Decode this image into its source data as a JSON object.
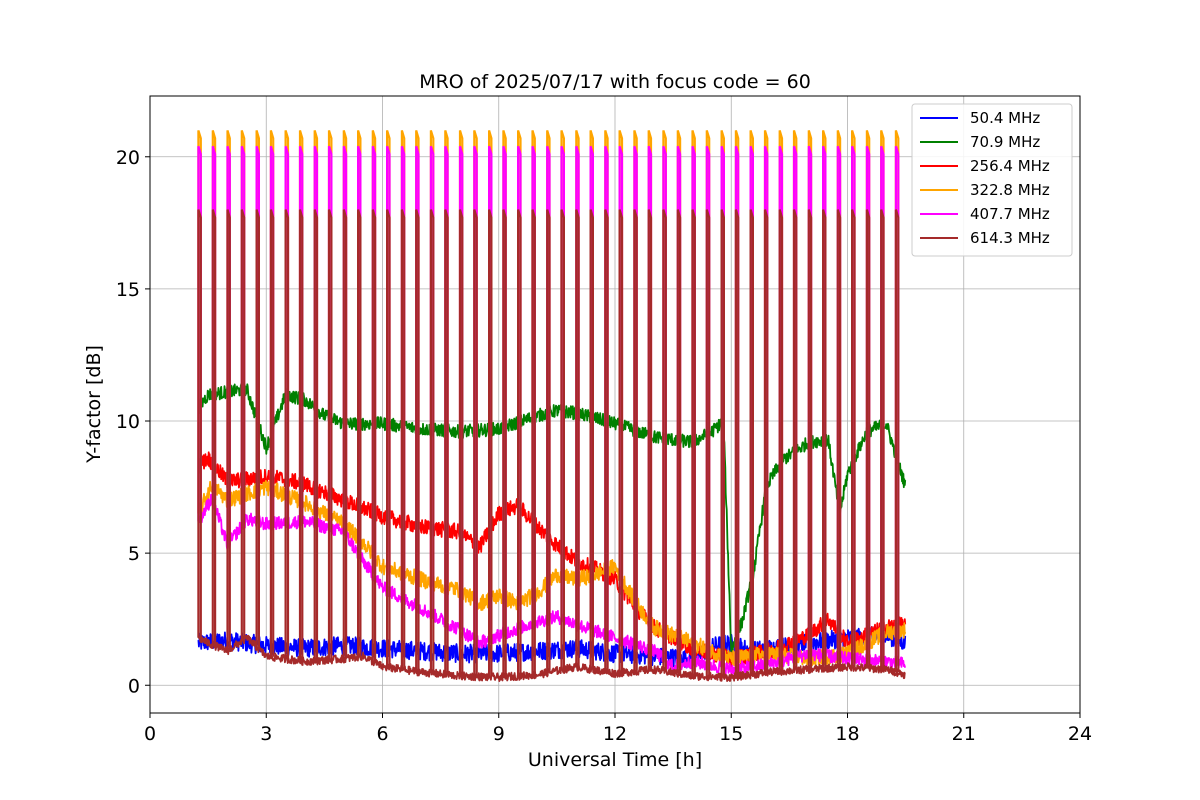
{
  "chart_data": {
    "type": "line",
    "title": "MRO of 2025/07/17 with focus code = 60",
    "xlabel": "Universal Time [h]",
    "ylabel": "Y-factor [dB]",
    "xlim": [
      0,
      24
    ],
    "ylim": [
      -1.05,
      22.3
    ],
    "x_ticks": [
      0,
      3,
      6,
      9,
      12,
      15,
      18,
      21,
      24
    ],
    "y_ticks": [
      0,
      5,
      10,
      15,
      20
    ],
    "grid": true,
    "legend_position": "top-right",
    "spike_times": [
      1.25,
      1.62,
      2.0,
      2.37,
      2.75,
      3.12,
      3.5,
      3.87,
      4.25,
      4.62,
      5.0,
      5.37,
      5.75,
      6.12,
      6.5,
      6.87,
      7.25,
      7.62,
      8.0,
      8.37,
      8.75,
      9.12,
      9.5,
      9.87,
      10.25,
      10.62,
      11.0,
      11.37,
      11.75,
      12.12,
      12.5,
      12.87,
      13.25,
      13.62,
      14.0,
      14.37,
      14.75,
      15.12,
      15.5,
      15.87,
      16.25,
      16.62,
      17.0,
      17.37,
      17.75,
      18.12,
      18.5,
      18.87,
      19.25
    ],
    "series": [
      {
        "name": " 50.4 MHz",
        "color": "#0000ff",
        "noise": 0.35,
        "x": [
          1.25,
          2,
          3,
          4,
          5,
          6,
          7,
          8,
          9,
          10,
          11,
          12,
          13,
          14,
          14.6,
          15,
          15.5,
          16,
          17,
          18,
          19,
          19.5
        ],
        "y": [
          1.6,
          1.7,
          1.5,
          1.4,
          1.5,
          1.4,
          1.3,
          1.2,
          1.2,
          1.3,
          1.4,
          1.2,
          1.1,
          1.0,
          1.5,
          1.6,
          1.3,
          1.4,
          1.6,
          1.8,
          1.9,
          1.6
        ]
      },
      {
        "name": " 70.9 MHz",
        "color": "#008000",
        "noise": 0.25,
        "x": [
          1.25,
          1.5,
          2,
          2.5,
          3,
          3.5,
          4,
          4.5,
          5,
          6,
          7,
          8,
          9,
          10,
          10.5,
          11,
          12,
          13,
          14,
          14.5,
          14.8,
          15,
          15.3,
          15.6,
          15.9,
          16.3,
          17,
          17.5,
          17.8,
          18,
          18.5,
          19,
          19.5
        ],
        "y": [
          10.5,
          11.0,
          11.1,
          11.2,
          9.0,
          11.0,
          10.8,
          10.2,
          9.9,
          9.9,
          9.7,
          9.6,
          9.7,
          10.2,
          10.4,
          10.3,
          9.9,
          9.4,
          9.2,
          9.6,
          10.0,
          1.3,
          2.5,
          4.5,
          7.5,
          8.5,
          9.2,
          9.3,
          6.5,
          8.0,
          9.6,
          9.9,
          7.5
        ]
      },
      {
        "name": "256.4 MHz",
        "color": "#ff0000",
        "noise": 0.3,
        "x": [
          1.25,
          1.5,
          2,
          3,
          3.5,
          4,
          5,
          6,
          7,
          8,
          8.5,
          9,
          9.5,
          10,
          10.5,
          11,
          11.5,
          12,
          12.5,
          13,
          13.5,
          14,
          14.5,
          15,
          16,
          17,
          17.5,
          18,
          19,
          19.5
        ],
        "y": [
          8.3,
          8.6,
          7.7,
          7.9,
          7.8,
          7.6,
          7.0,
          6.4,
          6.0,
          5.8,
          5.2,
          6.5,
          6.8,
          6.0,
          5.3,
          4.7,
          4.4,
          4.0,
          3.0,
          2.2,
          1.8,
          1.4,
          1.2,
          1.0,
          1.3,
          1.9,
          2.5,
          1.6,
          2.2,
          2.3
        ]
      },
      {
        "name": "322.8 MHz",
        "color": "#ffa500",
        "noise": 0.3,
        "x": [
          1.25,
          1.6,
          2,
          3,
          4,
          5,
          5.5,
          6,
          7,
          8,
          8.5,
          9,
          9.5,
          10,
          10.5,
          11,
          11.5,
          12,
          12.5,
          13,
          14,
          15,
          16,
          17,
          18,
          19,
          19.5
        ],
        "y": [
          6.5,
          7.6,
          7.0,
          7.5,
          6.9,
          6.1,
          5.4,
          4.5,
          4.0,
          3.6,
          3.1,
          3.4,
          3.1,
          3.5,
          4.2,
          4.0,
          4.2,
          4.5,
          3.2,
          2.2,
          1.6,
          1.0,
          1.2,
          1.0,
          1.2,
          2.0,
          2.1
        ]
      },
      {
        "name": "407.7 MHz",
        "color": "#ff00ff",
        "noise": 0.25,
        "x": [
          1.25,
          1.6,
          2,
          2.5,
          3,
          4,
          5,
          5.5,
          6,
          7,
          8,
          8.5,
          9,
          10,
          10.5,
          11,
          12,
          13,
          13.5,
          14,
          15,
          16,
          17,
          18,
          19,
          19.5
        ],
        "y": [
          6.2,
          7.1,
          5.3,
          6.3,
          6.1,
          6.2,
          5.8,
          4.7,
          3.7,
          2.9,
          2.1,
          1.6,
          1.9,
          2.4,
          2.6,
          2.3,
          1.8,
          1.3,
          0.7,
          0.9,
          0.6,
          0.8,
          1.2,
          1.0,
          0.9,
          0.8
        ]
      },
      {
        "name": "614.3 MHz",
        "color": "#a52a2a",
        "noise": 0.15,
        "x": [
          1.25,
          1.5,
          2,
          2.5,
          3,
          4,
          5,
          5.5,
          6,
          7,
          8,
          9,
          10,
          11,
          12,
          13,
          14,
          15,
          16,
          17,
          18,
          19,
          19.5
        ],
        "y": [
          1.8,
          1.6,
          1.3,
          1.8,
          1.1,
          0.9,
          1.0,
          1.1,
          0.7,
          0.5,
          0.35,
          0.3,
          0.4,
          0.7,
          0.45,
          0.6,
          0.35,
          0.3,
          0.5,
          0.6,
          0.7,
          0.6,
          0.4
        ]
      }
    ],
    "spikes": [
      {
        "series": "322.8 MHz",
        "peak": 21.0
      },
      {
        "series": "407.7 MHz",
        "peak": 20.4
      },
      {
        "series": "614.3 MHz",
        "peak": 18.0
      }
    ]
  }
}
